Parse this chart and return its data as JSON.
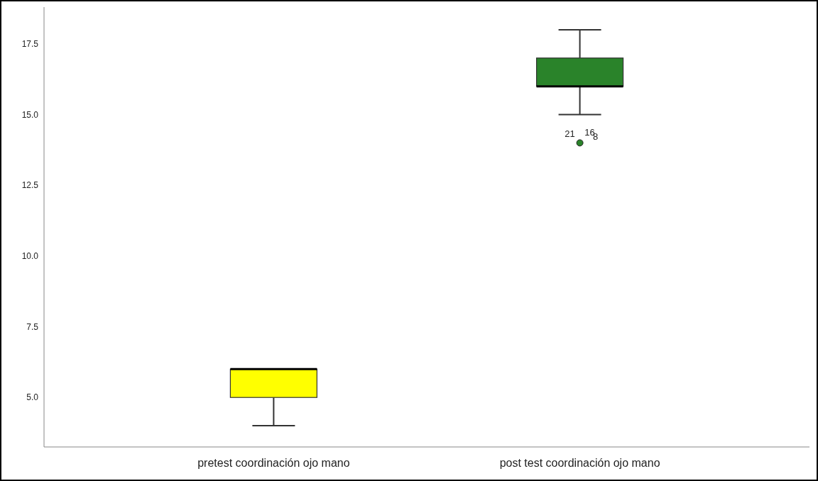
{
  "chart_data": {
    "type": "box",
    "categories": [
      "pretest coordinación ojo mano",
      "post test coordinación ojo mano"
    ],
    "colors": [
      "#ffff00",
      "#2a832a"
    ],
    "boxes": [
      {
        "low": 4,
        "q1": 5,
        "median": 6,
        "q3": 6,
        "high": 6
      },
      {
        "low": 15,
        "q1": 16,
        "median": 16,
        "q3": 17,
        "high": 18,
        "outliers": [
          14
        ]
      }
    ],
    "ylim": [
      3.25,
      18.8
    ],
    "yticks": [
      {
        "value": 5,
        "label": "5.0"
      },
      {
        "value": 7.5,
        "label": "7.5"
      },
      {
        "value": 10,
        "label": "10.0"
      },
      {
        "value": 12.5,
        "label": "12.5"
      },
      {
        "value": 15,
        "label": "15.0"
      },
      {
        "value": 17.5,
        "label": "17.5"
      }
    ],
    "annotations": [
      "21",
      "16",
      "8"
    ],
    "grid": false
  }
}
